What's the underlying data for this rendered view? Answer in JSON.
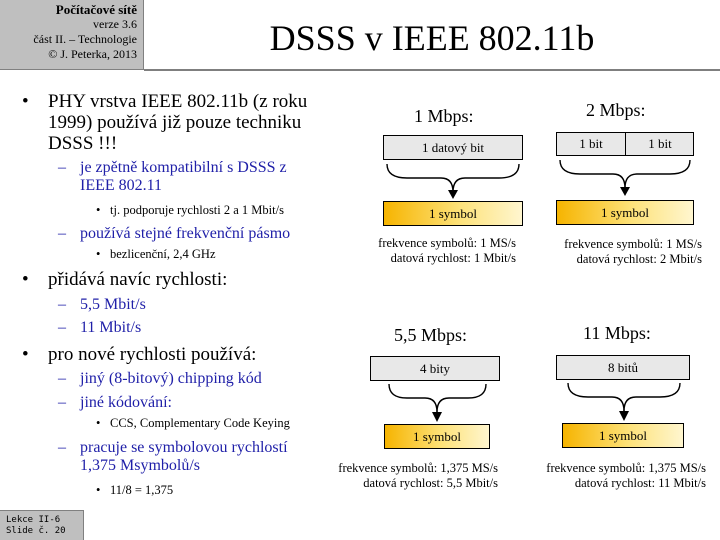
{
  "header": {
    "course": "Počítačové sítě",
    "version": "verze 3.6",
    "part": "část II. – Technologie",
    "copyright": "© J. Peterka, 2013"
  },
  "title": "DSSS v IEEE 802.11b",
  "bullets": {
    "b1": {
      "line1": "PHY vrstva IEEE 802.11b (z roku",
      "line2": "1999) používá již pouze techniku",
      "line3": "DSSS !!!"
    },
    "b1_1": {
      "line1": "je zpětně kompatibilní  s DSSS z",
      "line2": "IEEE 802.11"
    },
    "b1_1_1": "tj. podporuje rychlosti  2 a 1 Mbit/s",
    "b1_2": "používá stejné frekvenční pásmo",
    "b1_2_1": "bezlicenční,  2,4 GHz",
    "b2": "přidává navíc rychlosti:",
    "b2_1": "5,5 Mbit/s",
    "b2_2": "11 Mbit/s",
    "b3": "pro nové rychlosti používá:",
    "b3_1": "jiný (8-bitový) chipping  kód",
    "b3_2": "jiné kódování:",
    "b3_2_1": "CCS, Complementary  Code Keying",
    "b3_3": {
      "line1": "pracuje se symbolovou rychlostí",
      "line2": "1,375 Msymbolů/s"
    },
    "b3_3_1": "11/8 = 1,375"
  },
  "diagrams": {
    "d1": {
      "rate": "1 Mbps:",
      "bits": "1 datový  bit",
      "symbol": "1 symbol",
      "info1": "frekvence symbolů: 1 MS/s",
      "info2": "datová rychlost: 1 Mbit/s"
    },
    "d2": {
      "rate": "2 Mbps:",
      "bit_a": "1 bit",
      "bit_b": "1 bit",
      "symbol": "1 symbol",
      "info1": "frekvence symbolů: 1 MS/s",
      "info2": "datová rychlost: 2 Mbit/s"
    },
    "d3": {
      "rate": "5,5 Mbps:",
      "bits": "4 bity",
      "symbol": "1 symbol",
      "info1": "frekvence symbolů: 1,375 MS/s",
      "info2": "datová rychlost: 5,5 Mbit/s"
    },
    "d4": {
      "rate": "11 Mbps:",
      "bits": "8 bitů",
      "symbol": "1 symbol",
      "info1": "frekvence symbolů: 1,375 MS/s",
      "info2": "datová rychlost: 11 Mbit/s"
    }
  },
  "footer": {
    "lesson": "Lekce II-6",
    "slide": "Slide č. 20"
  }
}
